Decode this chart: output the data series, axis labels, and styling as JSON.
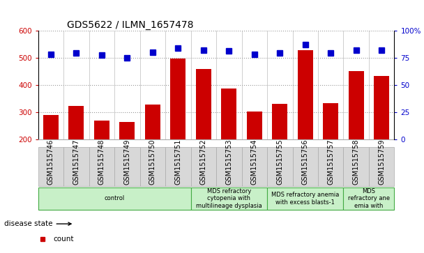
{
  "title": "GDS5622 / ILMN_1657478",
  "samples": [
    "GSM1515746",
    "GSM1515747",
    "GSM1515748",
    "GSM1515749",
    "GSM1515750",
    "GSM1515751",
    "GSM1515752",
    "GSM1515753",
    "GSM1515754",
    "GSM1515755",
    "GSM1515756",
    "GSM1515757",
    "GSM1515758",
    "GSM1515759"
  ],
  "counts": [
    290,
    322,
    268,
    262,
    328,
    497,
    457,
    385,
    302,
    330,
    527,
    332,
    450,
    432
  ],
  "percentiles": [
    78,
    79,
    77,
    75,
    80,
    84,
    82,
    81,
    78,
    79,
    87,
    79,
    82,
    82
  ],
  "bar_color": "#cc0000",
  "dot_color": "#0000cc",
  "ylim_left": [
    200,
    600
  ],
  "ylim_right": [
    0,
    100
  ],
  "yticks_left": [
    200,
    300,
    400,
    500,
    600
  ],
  "yticks_right": [
    0,
    25,
    50,
    75,
    100
  ],
  "ytick_labels_right": [
    "0",
    "25",
    "50",
    "75",
    "100%"
  ],
  "disease_groups": [
    {
      "label": "control",
      "start": 0,
      "end": 6
    },
    {
      "label": "MDS refractory\ncytopenia with\nmultilineage dysplasia",
      "start": 6,
      "end": 9
    },
    {
      "label": "MDS refractory anemia\nwith excess blasts-1",
      "start": 9,
      "end": 12
    },
    {
      "label": "MDS\nrefractory ane\nemia with",
      "start": 12,
      "end": 14
    }
  ],
  "bg_gray": "#d8d8d8",
  "bg_green": "#c8f0c8",
  "border_green": "#44aa44",
  "grid_color": "#999999",
  "bar_width": 0.6,
  "dot_size": 6,
  "title_fontsize": 10,
  "tick_fontsize": 7.5,
  "label_fontsize": 7,
  "legend_fontsize": 7.5
}
